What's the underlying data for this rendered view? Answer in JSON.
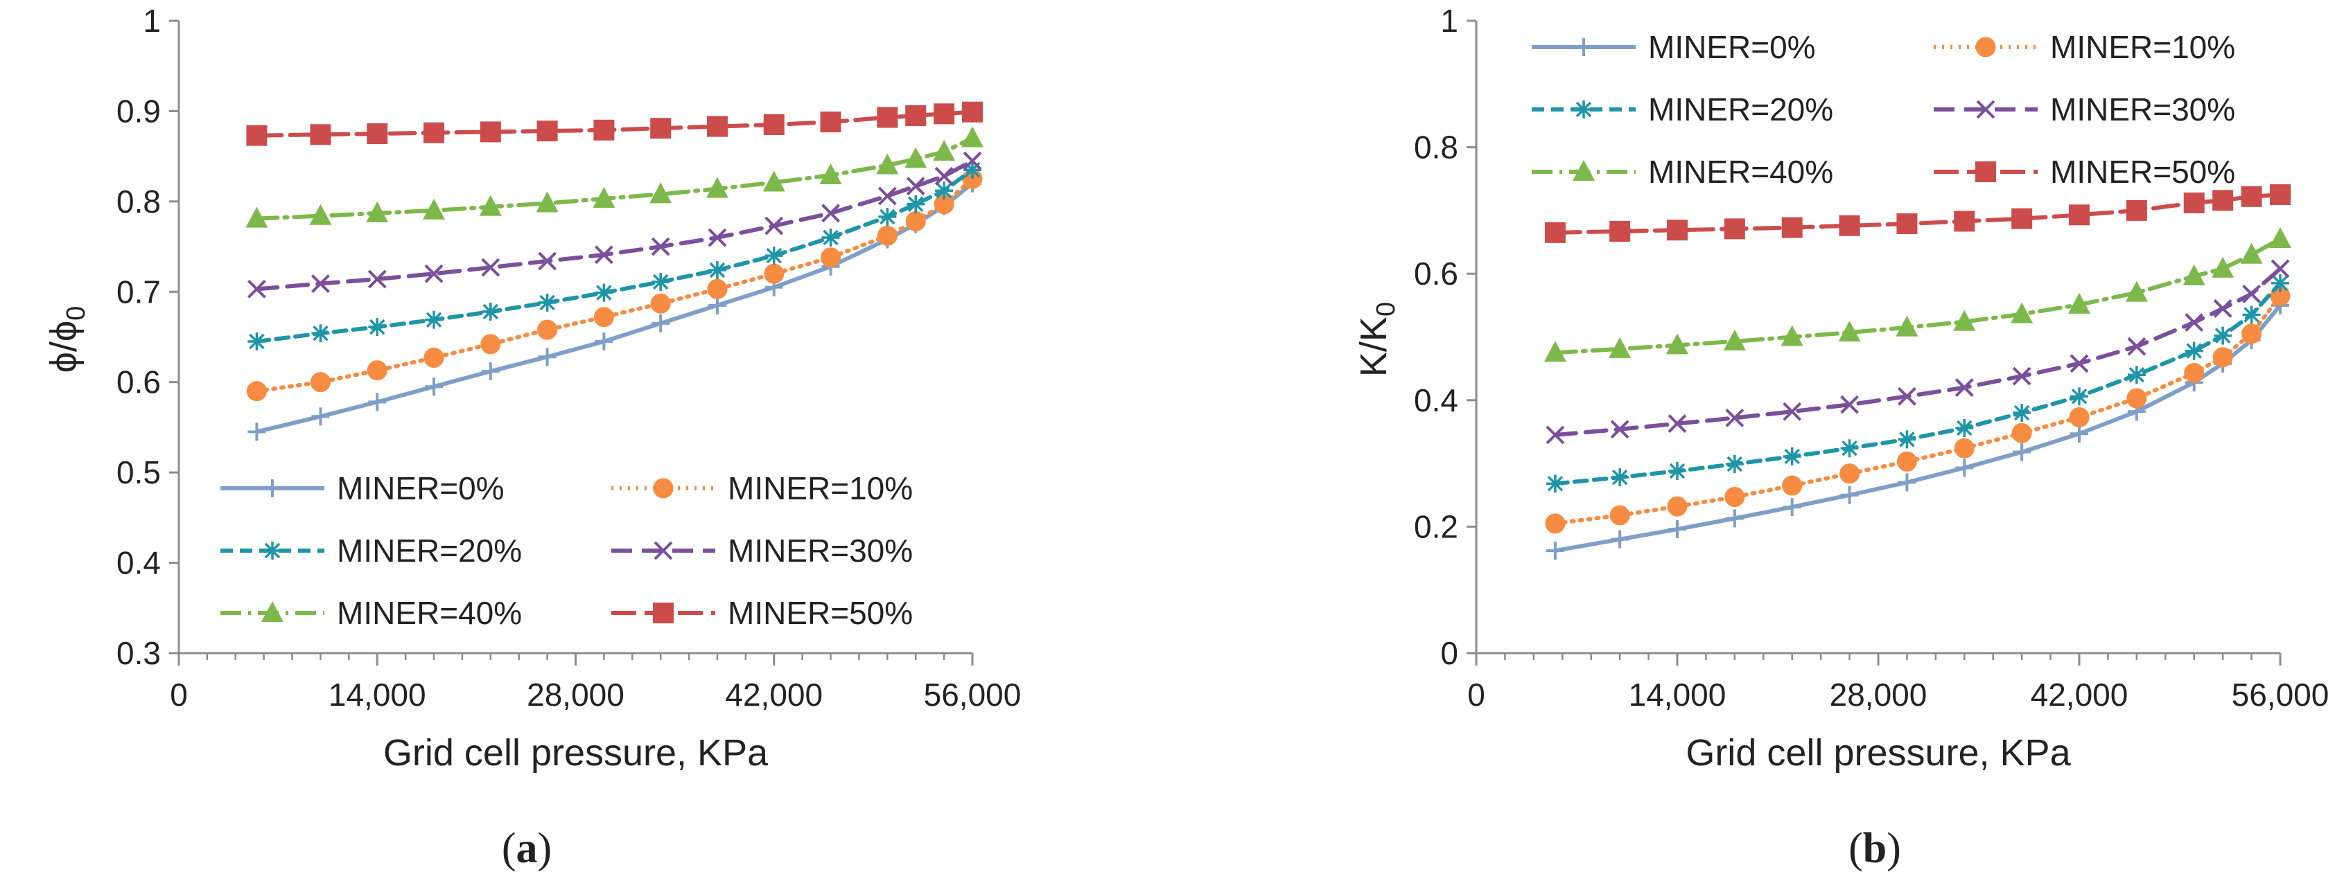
{
  "chart_data": [
    {
      "type": "line",
      "panel_label": "(a)",
      "xlabel": "Grid cell pressure,  KPa",
      "ylabel_main": "ϕ/ϕ",
      "ylabel_sub": "0",
      "xlim": [
        0,
        56000
      ],
      "ylim": [
        0.3,
        1.0
      ],
      "xticks": [
        0,
        14000,
        28000,
        42000,
        56000
      ],
      "xtick_labels": [
        "0",
        "14,000",
        "28,000",
        "42,000",
        "56,000"
      ],
      "yticks": [
        0.3,
        0.4,
        0.5,
        0.6,
        0.7,
        0.8,
        0.9,
        1.0
      ],
      "ytick_labels": [
        "0.3",
        "0.4",
        "0.5",
        "0.6",
        "0.7",
        "0.8",
        "0.9",
        "1"
      ],
      "legend_position": "bottom",
      "grid": false,
      "x": [
        5500,
        10000,
        14000,
        18000,
        22000,
        26000,
        30000,
        34000,
        38000,
        42000,
        46000,
        50000,
        52000,
        54000,
        56000
      ],
      "series": [
        {
          "name": "MINER=0%",
          "color": "#7f9fc8",
          "marker": "plus",
          "dash": "",
          "values": [
            0.545,
            0.562,
            0.578,
            0.595,
            0.612,
            0.628,
            0.645,
            0.665,
            0.685,
            0.705,
            0.728,
            0.758,
            0.775,
            0.795,
            0.82
          ]
        },
        {
          "name": "MINER=10%",
          "color": "#f58c42",
          "marker": "circle",
          "dash": "3 9",
          "values": [
            0.59,
            0.6,
            0.613,
            0.627,
            0.642,
            0.658,
            0.672,
            0.687,
            0.703,
            0.72,
            0.738,
            0.762,
            0.778,
            0.797,
            0.825
          ]
        },
        {
          "name": "MINER=20%",
          "color": "#1f95a8",
          "marker": "asterisk",
          "dash": "18 10",
          "values": [
            0.645,
            0.654,
            0.661,
            0.669,
            0.678,
            0.688,
            0.699,
            0.711,
            0.724,
            0.74,
            0.76,
            0.783,
            0.797,
            0.812,
            0.835
          ]
        },
        {
          "name": "MINER=30%",
          "color": "#7a4f9c",
          "marker": "x",
          "dash": "30 14",
          "values": [
            0.703,
            0.709,
            0.714,
            0.72,
            0.727,
            0.734,
            0.741,
            0.75,
            0.76,
            0.773,
            0.787,
            0.806,
            0.817,
            0.828,
            0.845
          ]
        },
        {
          "name": "MINER=40%",
          "color": "#7db84a",
          "marker": "triangle",
          "dash": "30 10 4 10",
          "values": [
            0.781,
            0.784,
            0.787,
            0.79,
            0.794,
            0.798,
            0.803,
            0.808,
            0.814,
            0.821,
            0.829,
            0.84,
            0.847,
            0.855,
            0.87
          ]
        },
        {
          "name": "MINER=50%",
          "color": "#cc4c4c",
          "marker": "square",
          "dash": "36 12",
          "values": [
            0.873,
            0.874,
            0.875,
            0.876,
            0.877,
            0.878,
            0.879,
            0.881,
            0.883,
            0.885,
            0.888,
            0.893,
            0.895,
            0.897,
            0.899
          ]
        }
      ]
    },
    {
      "type": "line",
      "panel_label": "(b)",
      "xlabel": "Grid cell pressure,  KPa",
      "ylabel_main": "K/K",
      "ylabel_sub": "0",
      "xlim": [
        0,
        56000
      ],
      "ylim": [
        0,
        1.0
      ],
      "xticks": [
        0,
        14000,
        28000,
        42000,
        56000
      ],
      "xtick_labels": [
        "0",
        "14,000",
        "28,000",
        "42,000",
        "56,000"
      ],
      "yticks": [
        0,
        0.2,
        0.4,
        0.6,
        0.8,
        1.0
      ],
      "ytick_labels": [
        "0",
        "0.2",
        "0.4",
        "0.6",
        "0.8",
        "1"
      ],
      "legend_position": "top",
      "grid": false,
      "x": [
        5500,
        10000,
        14000,
        18000,
        22000,
        26000,
        30000,
        34000,
        38000,
        42000,
        46000,
        50000,
        52000,
        54000,
        56000
      ],
      "series": [
        {
          "name": "MINER=0%",
          "color": "#7f9fc8",
          "marker": "plus",
          "dash": "",
          "values": [
            0.162,
            0.18,
            0.196,
            0.213,
            0.231,
            0.25,
            0.27,
            0.293,
            0.318,
            0.347,
            0.382,
            0.428,
            0.458,
            0.495,
            0.55
          ]
        },
        {
          "name": "MINER=10%",
          "color": "#f58c42",
          "marker": "circle",
          "dash": "3 9",
          "values": [
            0.205,
            0.218,
            0.232,
            0.247,
            0.265,
            0.284,
            0.303,
            0.324,
            0.348,
            0.373,
            0.403,
            0.443,
            0.468,
            0.505,
            0.565
          ]
        },
        {
          "name": "MINER=20%",
          "color": "#1f95a8",
          "marker": "asterisk",
          "dash": "18 10",
          "values": [
            0.268,
            0.278,
            0.288,
            0.299,
            0.311,
            0.324,
            0.338,
            0.356,
            0.38,
            0.406,
            0.44,
            0.478,
            0.502,
            0.535,
            0.585
          ]
        },
        {
          "name": "MINER=30%",
          "color": "#7a4f9c",
          "marker": "x",
          "dash": "30 14",
          "values": [
            0.345,
            0.354,
            0.363,
            0.372,
            0.382,
            0.393,
            0.406,
            0.42,
            0.438,
            0.458,
            0.485,
            0.523,
            0.545,
            0.568,
            0.608
          ]
        },
        {
          "name": "MINER=40%",
          "color": "#7db84a",
          "marker": "triangle",
          "dash": "30 10 4 10",
          "values": [
            0.475,
            0.481,
            0.487,
            0.493,
            0.5,
            0.507,
            0.515,
            0.524,
            0.536,
            0.551,
            0.57,
            0.596,
            0.608,
            0.63,
            0.655
          ]
        },
        {
          "name": "MINER=50%",
          "color": "#cc4c4c",
          "marker": "square",
          "dash": "36 12",
          "values": [
            0.665,
            0.667,
            0.669,
            0.671,
            0.673,
            0.676,
            0.679,
            0.683,
            0.687,
            0.693,
            0.7,
            0.712,
            0.716,
            0.722,
            0.725
          ]
        }
      ]
    }
  ]
}
